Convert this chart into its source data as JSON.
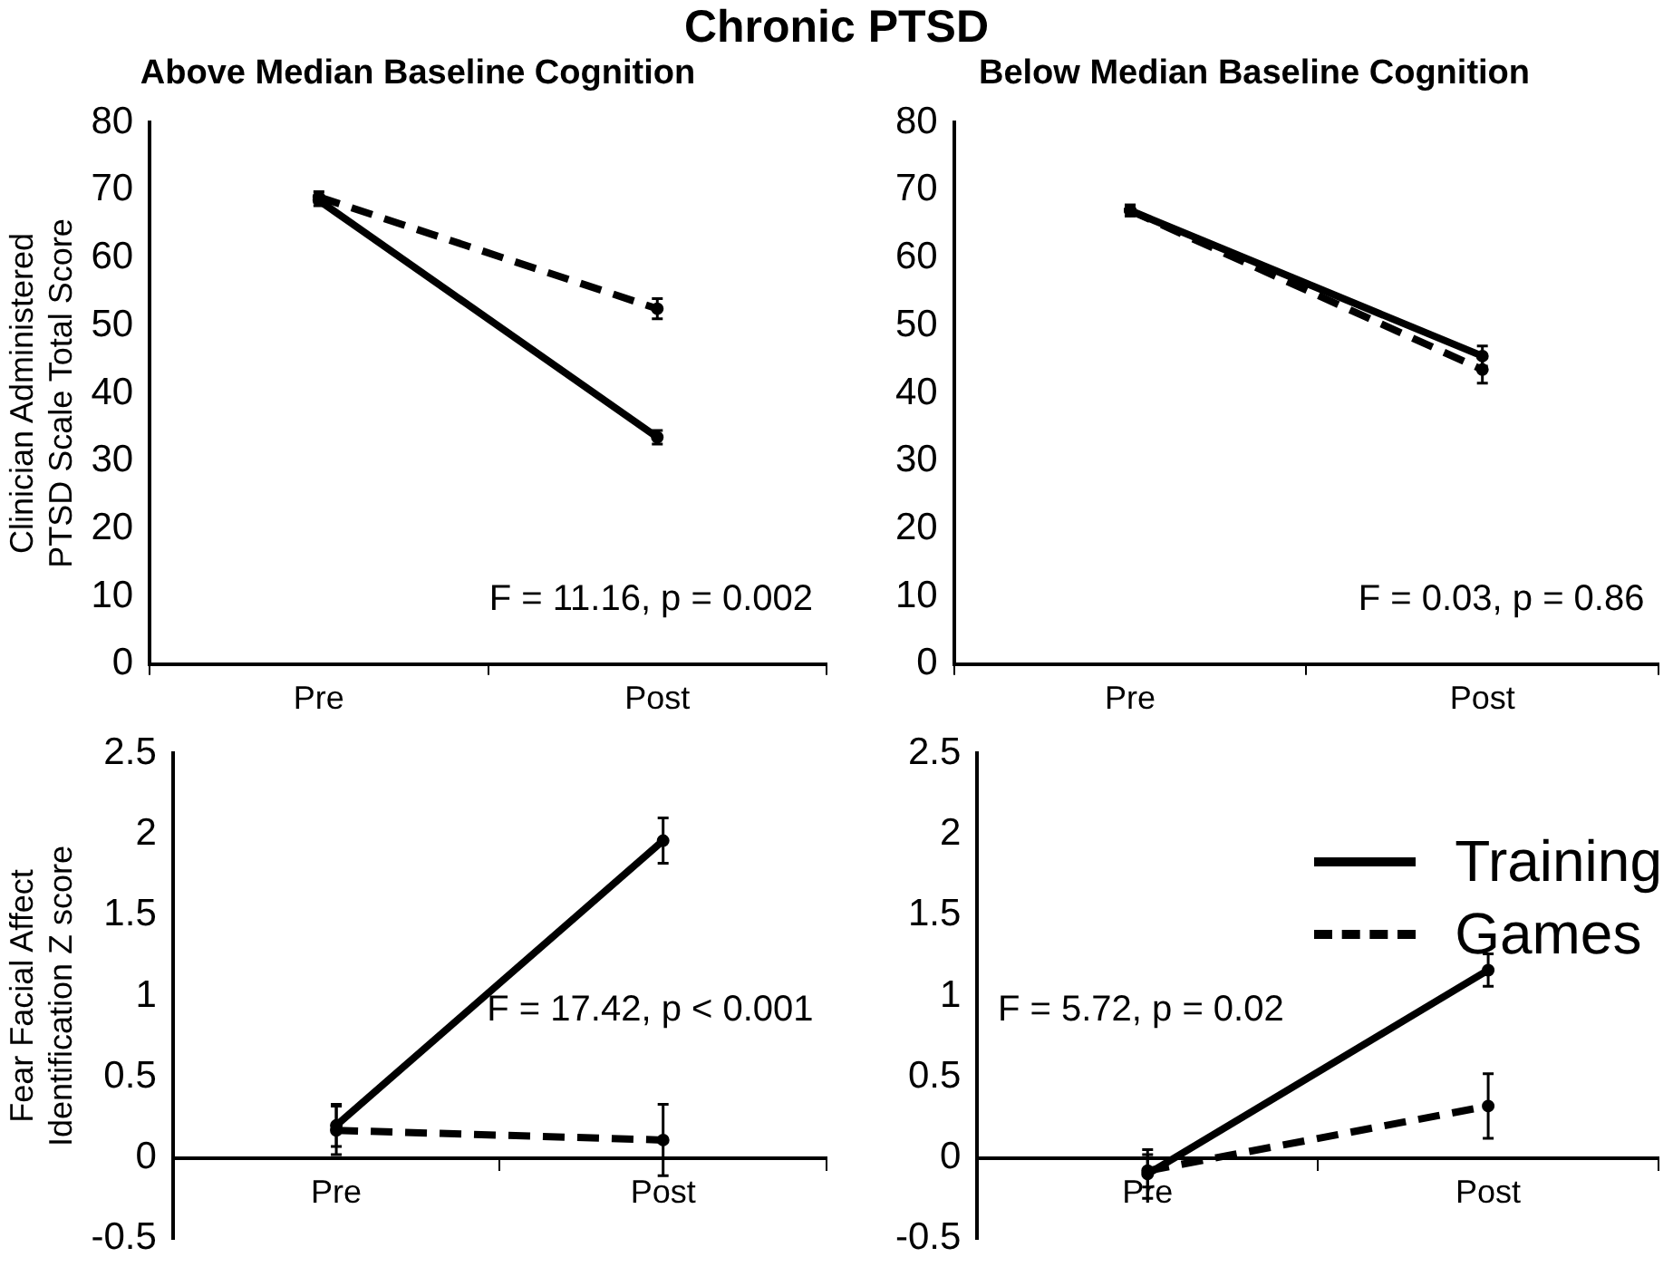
{
  "chart_data": [
    {
      "type": "line",
      "title": "Chronic PTSD",
      "subtitle": "Above Median Baseline Cognition",
      "ylabel": "Clinician Administered PTSD Scale Total Score",
      "categories": [
        "Pre",
        "Post"
      ],
      "series": [
        {
          "color": "#000000",
          "line_style": "solid",
          "values": [
            68.5,
            33.5
          ],
          "errors": [
            0.8,
            1
          ]
        },
        {
          "color": "#000000",
          "line_style": "dashed",
          "values": [
            69,
            52.5
          ],
          "errors": [
            0.8,
            1.5
          ]
        }
      ],
      "ylim": [
        0,
        80
      ],
      "yticks": [
        0,
        10,
        20,
        30,
        40,
        50,
        60,
        70,
        80
      ],
      "marker": "circle",
      "annotations": [
        "F = 11.16, p = 0.002"
      ]
    },
    {
      "type": "line",
      "title": "Below Median Baseline Cognition",
      "categories": [
        "Pre",
        "Post"
      ],
      "series": [
        {
          "color": "#000000",
          "line_style": "solid",
          "values": [
            67,
            45.5
          ],
          "errors": [
            0.8,
            1.5
          ]
        },
        {
          "color": "#000000",
          "line_style": "dashed",
          "values": [
            67,
            43.5
          ],
          "errors": [
            0.8,
            2
          ]
        }
      ],
      "ylim": [
        0,
        80
      ],
      "yticks": [
        0,
        10,
        20,
        30,
        40,
        50,
        60,
        70,
        80
      ],
      "marker": "circle",
      "annotations": [
        "F = 0.03, p = 0.86"
      ]
    },
    {
      "type": "line",
      "ylabel": "Fear Facial Affect Identification Z score",
      "categories": [
        "Pre",
        "Post"
      ],
      "series": [
        {
          "color": "#000000",
          "line_style": "solid",
          "values": [
            0.2,
            1.96
          ],
          "errors": [
            0.13,
            0.14
          ]
        },
        {
          "color": "#000000",
          "line_style": "dashed",
          "values": [
            0.17,
            0.11
          ],
          "errors": [
            0.15,
            0.22
          ]
        }
      ],
      "ylim": [
        -0.5,
        2.5
      ],
      "yticks": [
        -0.5,
        0,
        0.5,
        1,
        1.5,
        2,
        2.5
      ],
      "marker": "circle",
      "annotations": [
        "F = 17.42, p < 0.001"
      ]
    },
    {
      "type": "line",
      "categories": [
        "Pre",
        "Post"
      ],
      "series": [
        {
          "name": "Training",
          "color": "#000000",
          "line_style": "solid",
          "values": [
            -0.1,
            1.16
          ],
          "errors": [
            0.15,
            0.1
          ]
        },
        {
          "name": "Games",
          "color": "#000000",
          "line_style": "dashed",
          "values": [
            -0.08,
            0.32
          ],
          "errors": [
            0.1,
            0.2
          ]
        }
      ],
      "ylim": [
        -0.5,
        2.5
      ],
      "yticks": [
        -0.5,
        0,
        0.5,
        1,
        1.5,
        2,
        2.5
      ],
      "marker": "circle",
      "legend": "top right",
      "annotations": [
        "F = 5.72, p = 0.02"
      ]
    }
  ]
}
